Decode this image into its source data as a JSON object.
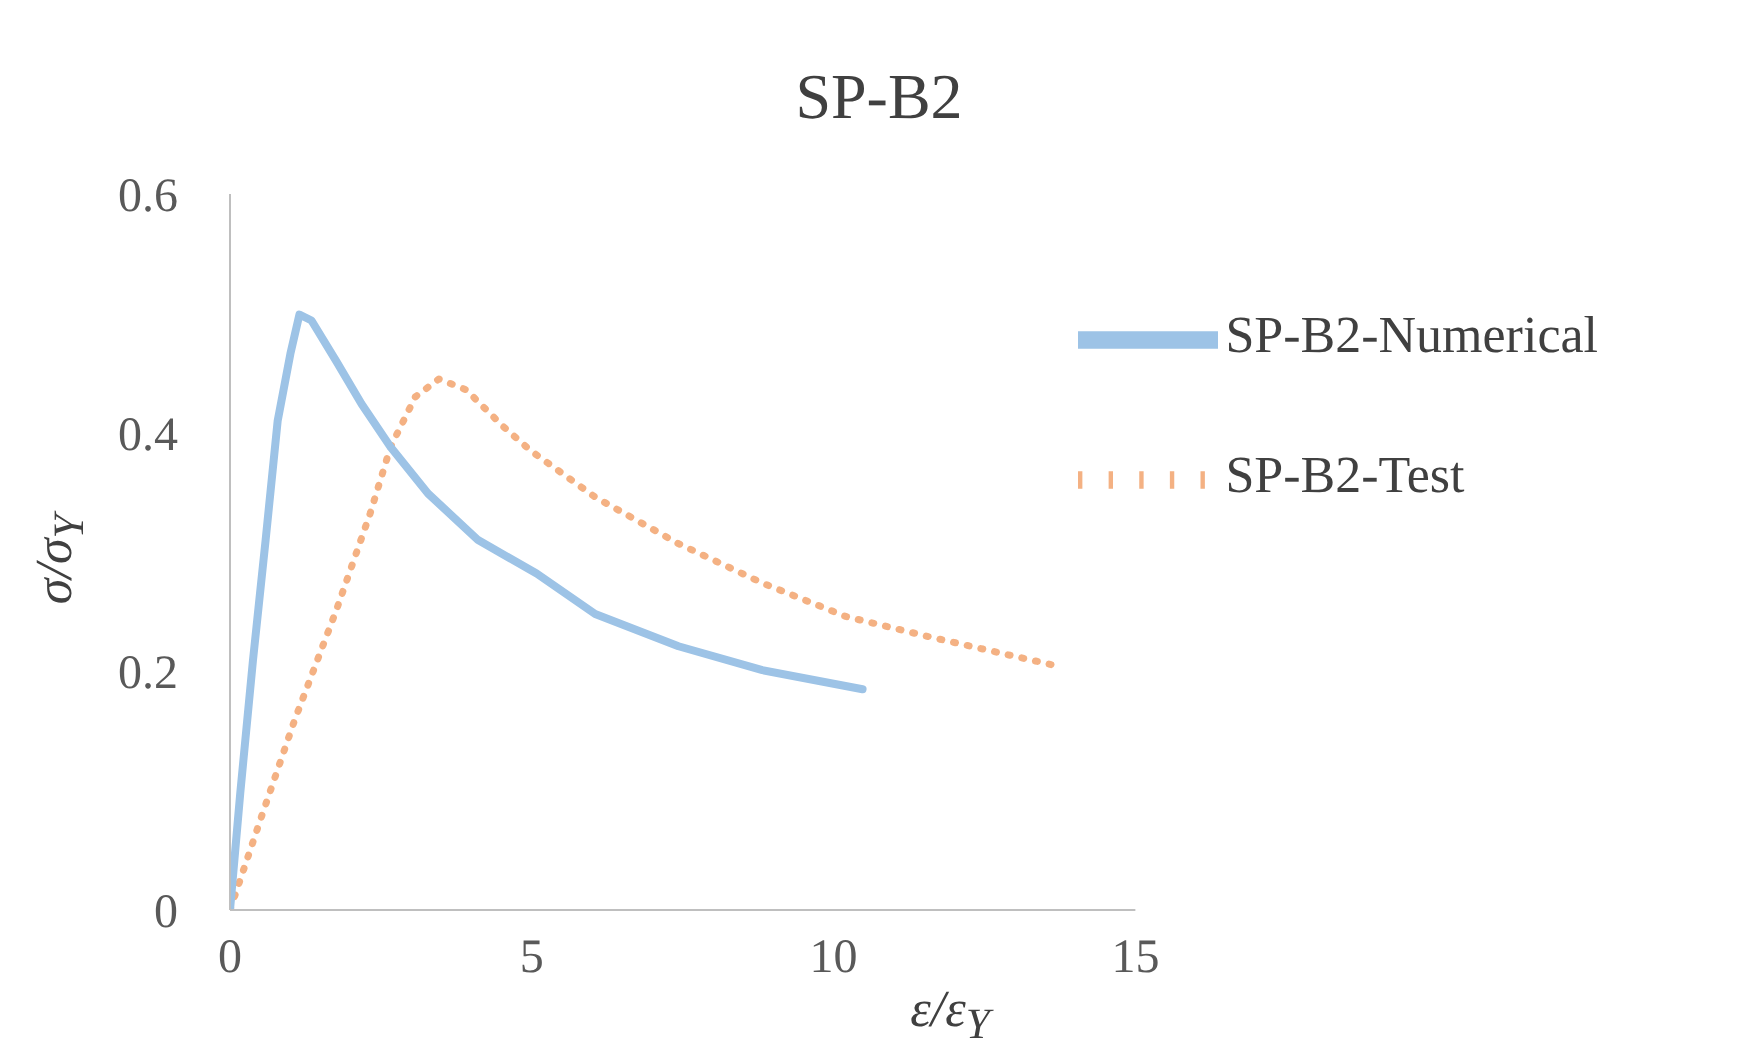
{
  "chart_data": {
    "type": "line",
    "title": "SP-B2",
    "xlabel": "ε/ε$_{Y}$",
    "ylabel": "σ/σ$_{Y}$",
    "xlim": [
      0,
      15
    ],
    "xticks": [
      0,
      5,
      10,
      15
    ],
    "ylim": [
      0,
      0.6
    ],
    "yticks": [
      0,
      0.2,
      0.4,
      0.6
    ],
    "grid": false,
    "legend": "top right",
    "marker": "none",
    "series": [
      {
        "name": "SP-B2-Test",
        "color": "#f4b183",
        "line_style": "dotted",
        "x": [
          0,
          0.52,
          1.07,
          1.76,
          2.32,
          2.66,
          3.07,
          3.46,
          3.91,
          4.53,
          4.98,
          6.05,
          7.43,
          8.82,
          10.2,
          11.58,
          13.66
        ],
        "values": [
          0,
          0.078,
          0.159,
          0.251,
          0.332,
          0.388,
          0.43,
          0.445,
          0.436,
          0.405,
          0.385,
          0.346,
          0.307,
          0.274,
          0.246,
          0.229,
          0.205
        ]
      },
      {
        "name": "SP-B2-Numerical",
        "color": "#9dc3e6",
        "line_style": "solid",
        "x": [
          0,
          0.17,
          0.38,
          0.59,
          0.79,
          1.0,
          1.15,
          1.35,
          1.76,
          2.18,
          2.66,
          3.28,
          4.11,
          5.08,
          6.05,
          7.43,
          8.82,
          10.48
        ],
        "values": [
          0,
          0.098,
          0.209,
          0.31,
          0.41,
          0.466,
          0.499,
          0.494,
          0.46,
          0.424,
          0.388,
          0.349,
          0.31,
          0.282,
          0.248,
          0.221,
          0.201,
          0.185
        ]
      }
    ]
  }
}
